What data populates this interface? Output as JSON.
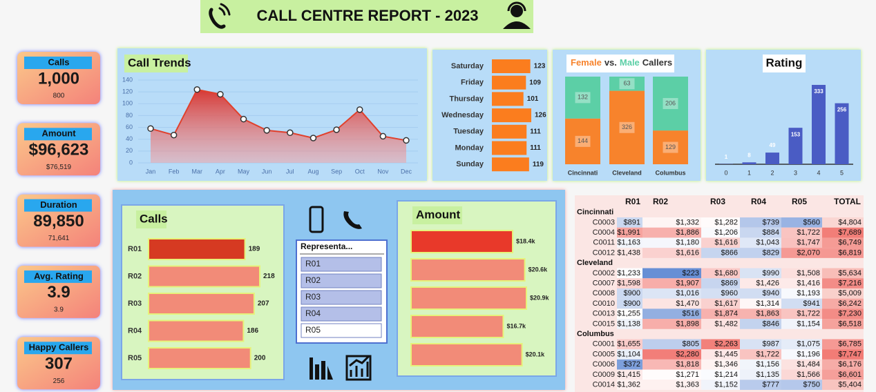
{
  "header": {
    "title": "CALL CENTRE REPORT - 2023"
  },
  "kpis": [
    {
      "label": "Calls",
      "value": "1,000",
      "previous": "800"
    },
    {
      "label": "Amount",
      "value": "$96,623",
      "previous": "$76,519"
    },
    {
      "label": "Duration",
      "value": "89,850",
      "previous": "71,641"
    },
    {
      "label": "Avg. Rating",
      "value": "3.9",
      "previous": "3.9"
    },
    {
      "label": "Happy Callers",
      "value": "307",
      "previous": "256"
    }
  ],
  "chart_data": [
    {
      "type": "area",
      "title": "Call Trends",
      "categories": [
        "Jan",
        "Feb",
        "Mar",
        "Apr",
        "May",
        "Jun",
        "Jul",
        "Aug",
        "Sep",
        "Oct",
        "Nov",
        "Dec"
      ],
      "values": [
        58,
        47,
        124,
        116,
        74,
        55,
        51,
        42,
        56,
        90,
        45,
        38
      ],
      "color": "#e0402c",
      "ylim": [
        0,
        140
      ],
      "yticks": [
        0,
        20,
        40,
        60,
        80,
        100,
        120,
        140
      ],
      "grid": true
    },
    {
      "type": "hbar",
      "categories": [
        "Saturday",
        "Friday",
        "Thursday",
        "Wednesday",
        "Tuesday",
        "Monday",
        "Sunday"
      ],
      "values": [
        123,
        109,
        101,
        126,
        111,
        111,
        119
      ],
      "color": "#fb7d1e"
    },
    {
      "type": "stacked_bar",
      "stacking": "percent",
      "title": [
        "vs.",
        "Callers"
      ],
      "categories": [
        "Cincinnati",
        "Cleveland",
        "Columbus"
      ],
      "series": [
        {
          "name": "Female",
          "color": "#f7832c",
          "values": [
            144,
            326,
            129
          ]
        },
        {
          "name": "Male",
          "color": "#5ccfa6",
          "values": [
            132,
            63,
            206
          ]
        }
      ]
    },
    {
      "type": "bar",
      "title": "Rating",
      "categories": [
        0,
        1,
        2,
        3,
        4,
        5
      ],
      "values": [
        1,
        8,
        49,
        153,
        333,
        256
      ],
      "color": "#4a5cc4"
    },
    {
      "type": "hbar",
      "title": "Calls",
      "categories": [
        "R01",
        "R02",
        "R03",
        "R04",
        "R05"
      ],
      "values": [
        189,
        218,
        207,
        186,
        200
      ],
      "colors": [
        "#d63a22",
        "#f28b78",
        "#f28b78",
        "#f28b78",
        "#f28b78"
      ]
    },
    {
      "type": "hbar",
      "title": "Amount",
      "values": [
        18400,
        20600,
        20900,
        16700,
        20100
      ],
      "value_labels": [
        "$18.4k",
        "$20.6k",
        "$20.9k",
        "$16.7k",
        "$20.1k"
      ],
      "colors": [
        "#e8392a",
        "#f28b78",
        "#f28b78",
        "#f28b78",
        "#f28b78"
      ]
    }
  ],
  "slicer": {
    "title": "Representa...",
    "items": [
      "R01",
      "R02",
      "R03",
      "R04",
      "R05"
    ],
    "selected": [
      true,
      true,
      true,
      true,
      false
    ]
  },
  "table": {
    "columns": [
      "R01",
      "R02",
      "R03",
      "R04",
      "R05",
      "TOTAL"
    ],
    "groups": [
      {
        "name": "Cincinnati",
        "rows": [
          [
            "C0003",
            "$891",
            "$1,332",
            "$1,282",
            "$739",
            "$560",
            "$4,804"
          ],
          [
            "C0004",
            "$1,991",
            "$1,886",
            "$1,206",
            "$884",
            "$1,722",
            "$7,689"
          ],
          [
            "C0011",
            "$1,163",
            "$1,180",
            "$1,616",
            "$1,043",
            "$1,747",
            "$6,749"
          ],
          [
            "C0012",
            "$1,438",
            "$1,616",
            "$866",
            "$829",
            "$2,070",
            "$6,819"
          ]
        ]
      },
      {
        "name": "Cleveland",
        "rows": [
          [
            "C0002",
            "$1,233",
            "$223",
            "$1,680",
            "$990",
            "$1,508",
            "$5,634"
          ],
          [
            "C0007",
            "$1,598",
            "$1,907",
            "$869",
            "$1,426",
            "$1,416",
            "$7,216"
          ],
          [
            "C0008",
            "$900",
            "$1,016",
            "$960",
            "$940",
            "$1,193",
            "$5,009"
          ],
          [
            "C0010",
            "$900",
            "$1,470",
            "$1,617",
            "$1,314",
            "$941",
            "$6,242"
          ],
          [
            "C0013",
            "$1,255",
            "$516",
            "$1,874",
            "$1,863",
            "$1,722",
            "$7,230"
          ],
          [
            "C0015",
            "$1,138",
            "$1,898",
            "$1,482",
            "$846",
            "$1,154",
            "$6,518"
          ]
        ]
      },
      {
        "name": "Columbus",
        "rows": [
          [
            "C0001",
            "$1,655",
            "$805",
            "$2,263",
            "$987",
            "$1,075",
            "$6,785"
          ],
          [
            "C0005",
            "$1,104",
            "$2,280",
            "$1,445",
            "$1,722",
            "$1,196",
            "$7,747"
          ],
          [
            "C0006",
            "$372",
            "$1,818",
            "$1,346",
            "$1,156",
            "$1,484",
            "$6,176"
          ],
          [
            "C0009",
            "$1,415",
            "$1,271",
            "$1,214",
            "$1,135",
            "$1,566",
            "$6,601"
          ],
          [
            "C0014",
            "$1,362",
            "$1,363",
            "$1,152",
            "$777",
            "$750",
            "$5,404"
          ]
        ]
      }
    ]
  }
}
